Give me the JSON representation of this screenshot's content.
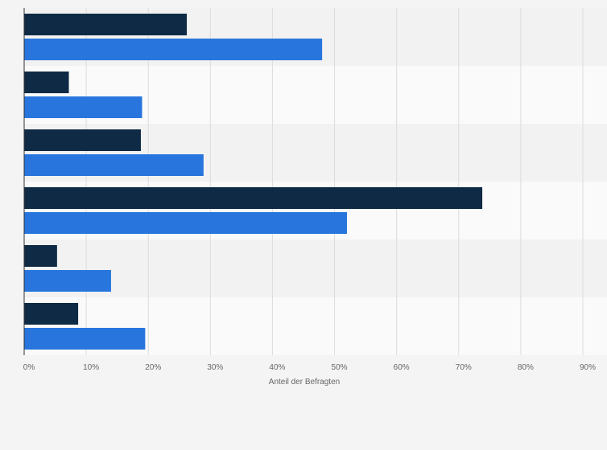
{
  "chart_data": {
    "type": "bar",
    "orientation": "horizontal",
    "categories": [
      "",
      "",
      "",
      "",
      "",
      ""
    ],
    "series": [
      {
        "color": "#0f2a44",
        "values": [
          26.2,
          7.2,
          18.8,
          73.8,
          5.3,
          8.7
        ]
      },
      {
        "color": "#2876dd",
        "values": [
          48.0,
          19.0,
          28.9,
          52.0,
          14.0,
          19.5
        ]
      }
    ],
    "xlabel": "Anteil der Befragten",
    "xlim": [
      0,
      90
    ],
    "xticks": [
      0,
      10,
      20,
      30,
      40,
      50,
      60,
      70,
      80,
      90
    ],
    "xtick_labels": [
      "0%",
      "10%",
      "20%",
      "30%",
      "40%",
      "50%",
      "60%",
      "70%",
      "80%",
      "90%"
    ],
    "grid": true,
    "legend": "none"
  },
  "colors": {
    "band_dark": "#f2f2f2",
    "band_light": "#fafafa",
    "grid": "#dcdcdc",
    "axis": "#333333"
  }
}
